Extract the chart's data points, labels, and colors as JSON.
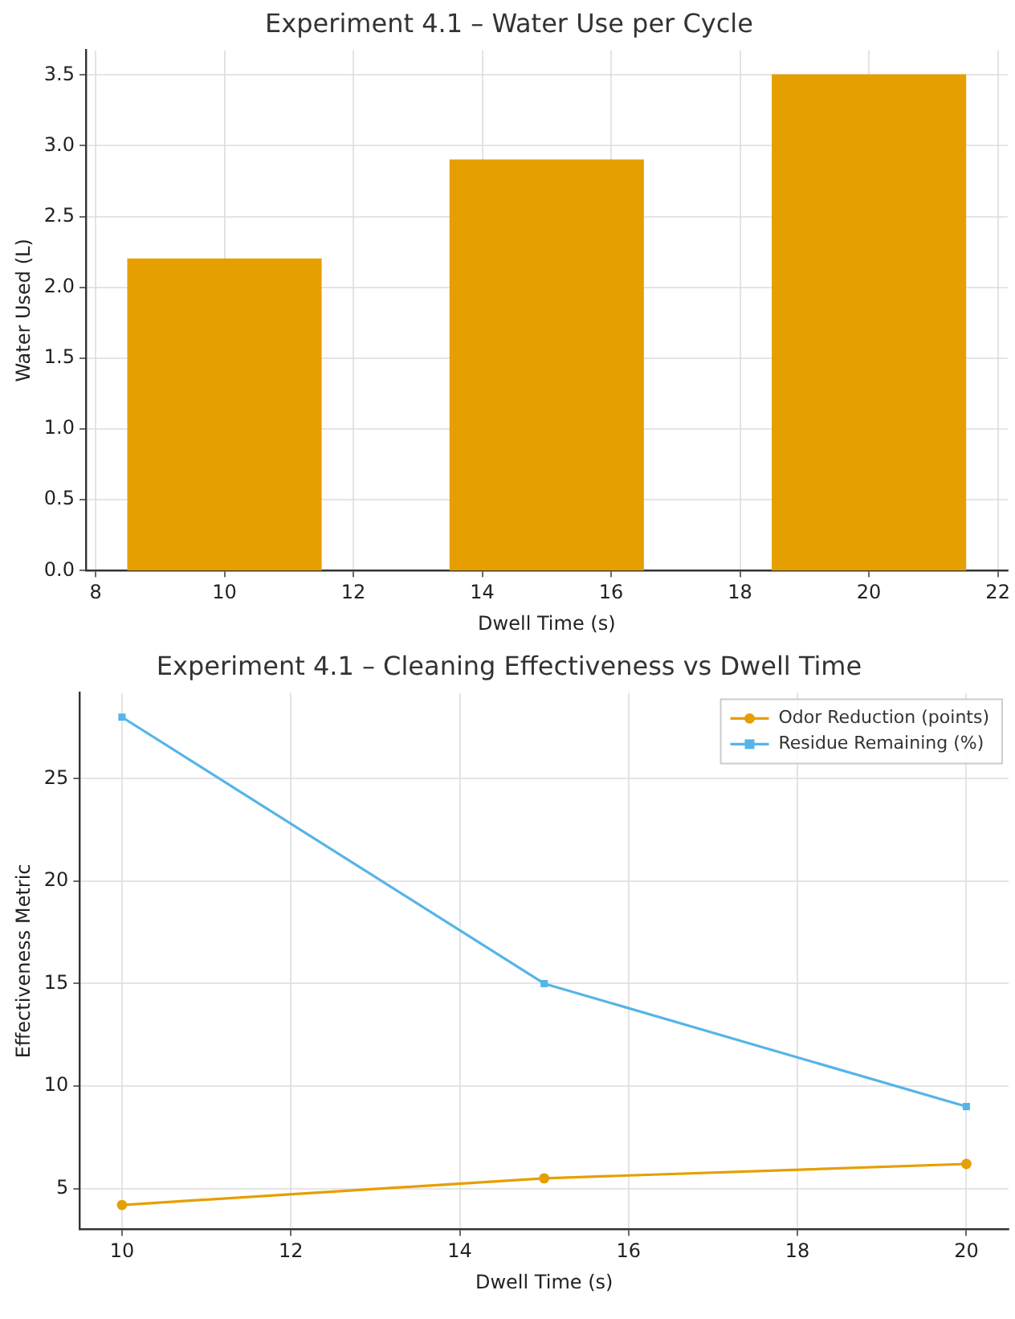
{
  "chart_data": [
    {
      "type": "bar",
      "title": "Experiment 4.1 – Water Use per Cycle",
      "xlabel": "Dwell Time (s)",
      "ylabel": "Water Used (L)",
      "x": [
        10,
        15,
        20
      ],
      "values": [
        2.2,
        2.9,
        3.5
      ],
      "color": "#e69f00",
      "xlim": [
        7.85,
        22.15
      ],
      "xticks": [
        8,
        10,
        12,
        14,
        16,
        18,
        20,
        22
      ],
      "ylim": [
        0,
        3.675
      ],
      "yticks": [
        {
          "value": 0,
          "label": "0.0"
        },
        {
          "value": 0.5,
          "label": "0.5"
        },
        {
          "value": 1,
          "label": "1.0"
        },
        {
          "value": 1.5,
          "label": "1.5"
        },
        {
          "value": 2,
          "label": "2.0"
        },
        {
          "value": 2.5,
          "label": "2.5"
        },
        {
          "value": 3,
          "label": "3.0"
        },
        {
          "value": 3.5,
          "label": "3.5"
        }
      ],
      "grid": true,
      "legend": false
    },
    {
      "type": "line",
      "title": "Experiment 4.1 – Cleaning Effectiveness vs Dwell Time",
      "xlabel": "Dwell Time (s)",
      "ylabel": "Effectiveness Metric",
      "x": [
        10,
        15,
        20
      ],
      "series": [
        {
          "name": "Odor Reduction (points)",
          "color": "#e69f00",
          "marker": "circle",
          "values": [
            4.2,
            5.5,
            6.2
          ]
        },
        {
          "name": "Residue Remaining (%)",
          "color": "#56b4e9",
          "marker": "square",
          "values": [
            28,
            15,
            9
          ]
        }
      ],
      "xlim": [
        9.5,
        20.5
      ],
      "xticks": [
        10,
        12,
        14,
        16,
        18,
        20
      ],
      "ylim": [
        3.01,
        29.19
      ],
      "yticks": [
        5,
        10,
        15,
        20,
        25
      ],
      "grid": true,
      "legend": "top right",
      "line_style": "solid"
    }
  ]
}
